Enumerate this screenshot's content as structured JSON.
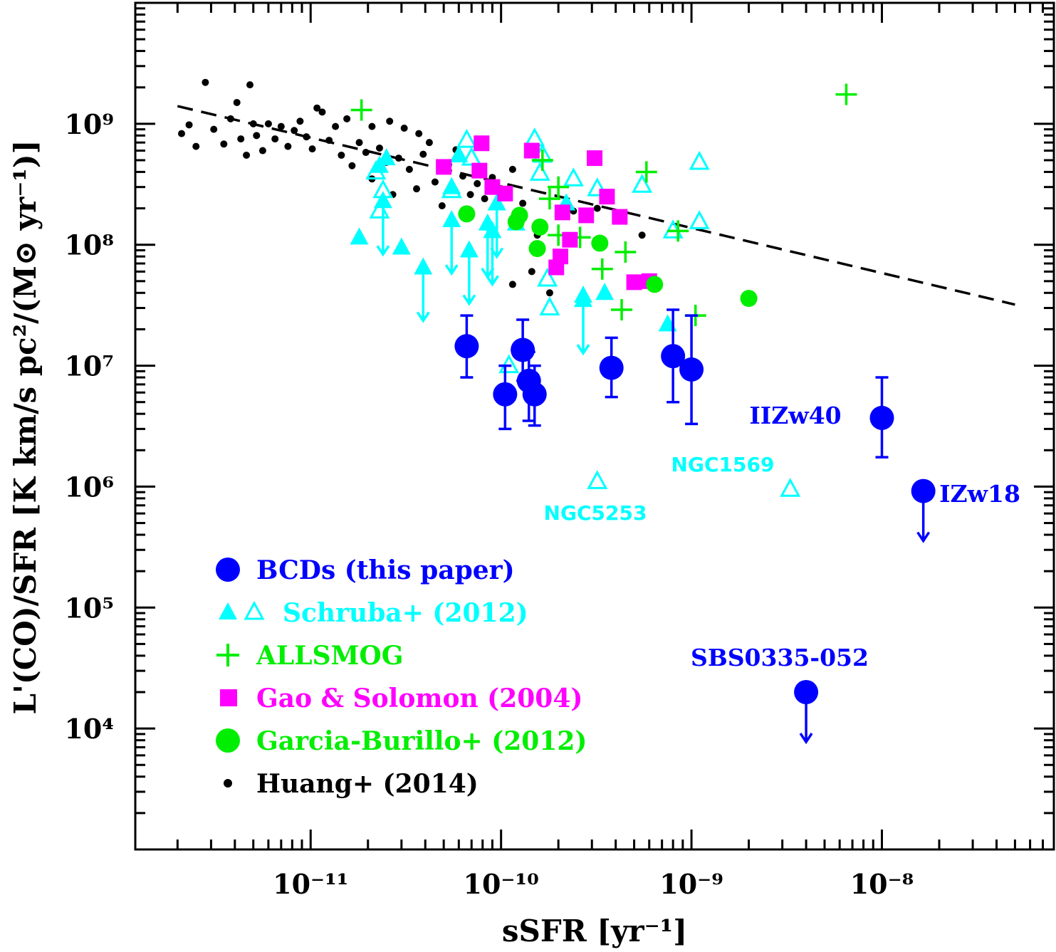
{
  "chart_data": {
    "type": "scatter",
    "title": "",
    "xlabel": "sSFR [yr⁻¹]",
    "ylabel": "L'(CO)/SFR [K km/s pc²/(M⊙ yr⁻¹)]",
    "xscale": "log",
    "yscale": "log",
    "xlim": [
      1.2e-12,
      8e-08
    ],
    "ylim": [
      1000.0,
      10000000000.0
    ],
    "grid": false,
    "legend_position": "bottom-left",
    "x_tick_labels": [
      "10⁻¹¹",
      "10⁻¹⁰",
      "10⁻⁹",
      "10⁻⁸"
    ],
    "y_tick_labels": [
      "10⁴",
      "10⁵",
      "10⁶",
      "10⁷",
      "10⁸",
      "10⁹"
    ],
    "series": [
      {
        "name": "BCDs (this paper)",
        "marker": "circle-filled-large",
        "color": "#0000ff",
        "points": [
          {
            "x": 6.6e-11,
            "y": 14500000.0,
            "ylo": 8000000.0,
            "yhi": 26000000.0
          },
          {
            "x": 1.3e-10,
            "y": 13500000.0,
            "ylo": 7500000.0,
            "yhi": 24000000.0
          },
          {
            "x": 1.05e-10,
            "y": 5800000.0,
            "ylo": 3000000.0,
            "yhi": 10000000.0
          },
          {
            "x": 1.4e-10,
            "y": 7500000.0,
            "ylo": 3500000.0,
            "yhi": 13000000.0
          },
          {
            "x": 1.5e-10,
            "y": 5800000.0,
            "ylo": 3200000.0,
            "yhi": 10000000.0
          },
          {
            "x": 3.8e-10,
            "y": 9600000.0,
            "ylo": 5500000.0,
            "yhi": 17000000.0
          },
          {
            "x": 8e-10,
            "y": 12000000.0,
            "ylo": 5000000.0,
            "yhi": 29000000.0
          },
          {
            "x": 1e-09,
            "y": 9300000.0,
            "ylo": 3300000.0,
            "yhi": 26000000.0
          },
          {
            "x": 1e-08,
            "y": 3700000.0,
            "ylo": 1750000.0,
            "yhi": 8000000.0
          }
        ],
        "upper_limits": [
          {
            "x": 1.65e-08,
            "y": 920000.0
          },
          {
            "x": 4e-09,
            "y": 20000.0
          }
        ]
      },
      {
        "name": "Schruba+ (2012)",
        "marker": "triangle-filled",
        "color": "#00ffff",
        "points": [
          {
            "x": 1.8e-11,
            "y": 115000000.0
          },
          {
            "x": 3e-11,
            "y": 95000000.0
          },
          {
            "x": 2.3e-11,
            "y": 450000000.0
          },
          {
            "x": 2.5e-11,
            "y": 520000000.0
          },
          {
            "x": 5.5e-11,
            "y": 300000000.0
          },
          {
            "x": 6e-11,
            "y": 550000000.0
          },
          {
            "x": 2.7e-10,
            "y": 38000000.0
          },
          {
            "x": 3.5e-10,
            "y": 40000000.0
          },
          {
            "x": 2.2e-10,
            "y": 220000000.0
          },
          {
            "x": 1.2e-10,
            "y": 150000000.0
          },
          {
            "x": 7.5e-10,
            "y": 22000000.0
          }
        ],
        "upper_limits": [
          {
            "x": 3.9e-11,
            "y": 65000000.0
          },
          {
            "x": 5.5e-11,
            "y": 160000000.0
          },
          {
            "x": 6.8e-11,
            "y": 90000000.0
          },
          {
            "x": 8.5e-11,
            "y": 150000000.0
          },
          {
            "x": 9e-11,
            "y": 130000000.0
          },
          {
            "x": 9.5e-11,
            "y": 220000000.0
          },
          {
            "x": 2.7e-10,
            "y": 35000000.0
          },
          {
            "x": 2.4e-11,
            "y": 230000000.0
          }
        ]
      },
      {
        "name": "Schruba+ (2012)",
        "marker": "triangle-open",
        "color": "#00ffff",
        "points": [
          {
            "x": 2.2e-11,
            "y": 400000000.0
          },
          {
            "x": 2.4e-11,
            "y": 280000000.0
          },
          {
            "x": 2.3e-11,
            "y": 190000000.0
          },
          {
            "x": 6.6e-11,
            "y": 730000000.0
          },
          {
            "x": 7e-11,
            "y": 520000000.0
          },
          {
            "x": 5.5e-11,
            "y": 280000000.0
          },
          {
            "x": 1.5e-10,
            "y": 750000000.0
          },
          {
            "x": 1.65e-10,
            "y": 550000000.0
          },
          {
            "x": 1.6e-10,
            "y": 390000000.0
          },
          {
            "x": 2.4e-10,
            "y": 350000000.0
          },
          {
            "x": 1.75e-10,
            "y": 52000000.0
          },
          {
            "x": 1.8e-10,
            "y": 30000000.0
          },
          {
            "x": 3.2e-10,
            "y": 290000000.0
          },
          {
            "x": 5.5e-10,
            "y": 310000000.0
          },
          {
            "x": 1.1e-09,
            "y": 480000000.0
          },
          {
            "x": 1.1e-09,
            "y": 155000000.0
          },
          {
            "x": 8e-10,
            "y": 130000000.0
          },
          {
            "x": 3.2e-10,
            "y": 1100000.0
          },
          {
            "x": 3.3e-09,
            "y": 950000.0
          },
          {
            "x": 1.1e-10,
            "y": 10000000.0
          }
        ]
      },
      {
        "name": "ALLSMOG",
        "marker": "plus",
        "color": "#00ee00",
        "points": [
          {
            "x": 1.85e-11,
            "y": 1300000000.0
          },
          {
            "x": 6.5e-09,
            "y": 1750000000.0
          },
          {
            "x": 5.8e-10,
            "y": 400000000.0
          },
          {
            "x": 1.65e-10,
            "y": 500000000.0
          },
          {
            "x": 2e-10,
            "y": 300000000.0
          },
          {
            "x": 4.5e-10,
            "y": 87000000.0
          },
          {
            "x": 3.4e-10,
            "y": 63000000.0
          },
          {
            "x": 4.3e-10,
            "y": 29000000.0
          },
          {
            "x": 1.05e-09,
            "y": 26000000.0
          },
          {
            "x": 2e-10,
            "y": 120000000.0
          },
          {
            "x": 2.6e-10,
            "y": 115000000.0
          },
          {
            "x": 8.5e-10,
            "y": 130000000.0
          },
          {
            "x": 1e-09,
            "y": 9000000.0
          },
          {
            "x": 1.8e-10,
            "y": 240000000.0
          }
        ]
      },
      {
        "name": "Gao & Solomon (2004)",
        "marker": "square-filled",
        "color": "#ff00ff",
        "points": [
          {
            "x": 5e-11,
            "y": 440000000.0
          },
          {
            "x": 7.9e-11,
            "y": 690000000.0
          },
          {
            "x": 7.7e-11,
            "y": 410000000.0
          },
          {
            "x": 9e-11,
            "y": 300000000.0
          },
          {
            "x": 1.05e-10,
            "y": 265000000.0
          },
          {
            "x": 1.45e-10,
            "y": 600000000.0
          },
          {
            "x": 3.1e-10,
            "y": 520000000.0
          },
          {
            "x": 3.6e-10,
            "y": 250000000.0
          },
          {
            "x": 4.2e-10,
            "y": 170000000.0
          },
          {
            "x": 2.1e-10,
            "y": 185000000.0
          },
          {
            "x": 2.8e-10,
            "y": 175000000.0
          },
          {
            "x": 2.3e-10,
            "y": 110000000.0
          },
          {
            "x": 2.05e-10,
            "y": 80000000.0
          },
          {
            "x": 1.95e-10,
            "y": 65000000.0
          },
          {
            "x": 5e-10,
            "y": 49000000.0
          },
          {
            "x": 6e-10,
            "y": 50000000.0
          }
        ]
      },
      {
        "name": "Garcia-Burillo+ (2012)",
        "marker": "circle-filled",
        "color": "#00ee00",
        "points": [
          {
            "x": 6.6e-11,
            "y": 180000000.0
          },
          {
            "x": 1.2e-10,
            "y": 155000000.0
          },
          {
            "x": 1.25e-10,
            "y": 175000000.0
          },
          {
            "x": 1.6e-10,
            "y": 140000000.0
          },
          {
            "x": 1.55e-10,
            "y": 93000000.0
          },
          {
            "x": 3.3e-10,
            "y": 103000000.0
          },
          {
            "x": 6.4e-10,
            "y": 47000000.0
          },
          {
            "x": 2e-09,
            "y": 36000000.0
          }
        ]
      },
      {
        "name": "Huang+ (2014)",
        "marker": "dot",
        "color": "#000000",
        "points": [
          {
            "x": 2.1e-12,
            "y": 830000000.0
          },
          {
            "x": 2.3e-12,
            "y": 980000000.0
          },
          {
            "x": 2.5e-12,
            "y": 650000000.0
          },
          {
            "x": 2.8e-12,
            "y": 2200000000.0
          },
          {
            "x": 3.1e-12,
            "y": 900000000.0
          },
          {
            "x": 3.5e-12,
            "y": 680000000.0
          },
          {
            "x": 3.8e-12,
            "y": 1100000000.0
          },
          {
            "x": 4.1e-12,
            "y": 1500000000.0
          },
          {
            "x": 4.3e-12,
            "y": 750000000.0
          },
          {
            "x": 4.6e-12,
            "y": 550000000.0
          },
          {
            "x": 4.8e-12,
            "y": 2100000000.0
          },
          {
            "x": 5e-12,
            "y": 1000000000.0
          },
          {
            "x": 5.2e-12,
            "y": 800000000.0
          },
          {
            "x": 5.6e-12,
            "y": 600000000.0
          },
          {
            "x": 6e-12,
            "y": 1000000000.0
          },
          {
            "x": 6.5e-12,
            "y": 750000000.0
          },
          {
            "x": 7e-12,
            "y": 950000000.0
          },
          {
            "x": 7.6e-12,
            "y": 650000000.0
          },
          {
            "x": 8.2e-12,
            "y": 880000000.0
          },
          {
            "x": 8.8e-12,
            "y": 1050000000.0
          },
          {
            "x": 9.5e-12,
            "y": 780000000.0
          },
          {
            "x": 1.02e-11,
            "y": 620000000.0
          },
          {
            "x": 1.08e-11,
            "y": 1350000000.0
          },
          {
            "x": 1.15e-11,
            "y": 1250000000.0
          },
          {
            "x": 1.25e-11,
            "y": 730000000.0
          },
          {
            "x": 1.35e-11,
            "y": 950000000.0
          },
          {
            "x": 1.45e-11,
            "y": 550000000.0
          },
          {
            "x": 1.55e-11,
            "y": 1100000000.0
          },
          {
            "x": 1.65e-11,
            "y": 450000000.0
          },
          {
            "x": 1.8e-11,
            "y": 700000000.0
          },
          {
            "x": 1.95e-11,
            "y": 580000000.0
          },
          {
            "x": 2.1e-11,
            "y": 350000000.0
          },
          {
            "x": 2.3e-11,
            "y": 630000000.0
          },
          {
            "x": 2.5e-11,
            "y": 480000000.0
          },
          {
            "x": 2.7e-11,
            "y": 260000000.0
          },
          {
            "x": 2.9e-11,
            "y": 520000000.0
          },
          {
            "x": 3.1e-11,
            "y": 920000000.0
          },
          {
            "x": 3.3e-11,
            "y": 420000000.0
          },
          {
            "x": 3.6e-11,
            "y": 290000000.0
          },
          {
            "x": 3.9e-11,
            "y": 560000000.0
          },
          {
            "x": 4.2e-11,
            "y": 700000000.0
          },
          {
            "x": 4.5e-11,
            "y": 330000000.0
          },
          {
            "x": 4.9e-11,
            "y": 210000000.0
          },
          {
            "x": 5.3e-11,
            "y": 460000000.0
          },
          {
            "x": 5.8e-11,
            "y": 610000000.0
          },
          {
            "x": 6.3e-11,
            "y": 370000000.0
          },
          {
            "x": 6.9e-11,
            "y": 260000000.0
          },
          {
            "x": 7.5e-11,
            "y": 320000000.0
          },
          {
            "x": 8.2e-11,
            "y": 240000000.0
          },
          {
            "x": 9e-11,
            "y": 360000000.0
          },
          {
            "x": 1e-10,
            "y": 290000000.0
          },
          {
            "x": 1.15e-10,
            "y": 420000000.0
          },
          {
            "x": 1.3e-10,
            "y": 220000000.0
          },
          {
            "x": 1.45e-10,
            "y": 60000000.0
          },
          {
            "x": 1.55e-10,
            "y": 120000000.0
          },
          {
            "x": 1.8e-10,
            "y": 40000000.0
          },
          {
            "x": 2.4e-10,
            "y": 190000000.0
          },
          {
            "x": 3.2e-10,
            "y": 200000000.0
          },
          {
            "x": 5.5e-10,
            "y": 120000000.0
          },
          {
            "x": 1.15e-10,
            "y": 47000000.0
          },
          {
            "x": 2.1e-11,
            "y": 950000000.0
          },
          {
            "x": 3.7e-11,
            "y": 830000000.0
          },
          {
            "x": 2.6e-11,
            "y": 1050000000.0
          }
        ]
      }
    ],
    "fit_line": {
      "style": "dashed",
      "color": "#000000",
      "points": [
        {
          "x": 2e-12,
          "y": 1400000000.0
        },
        {
          "x": 5e-08,
          "y": 32000000.0
        }
      ]
    },
    "annotations": [
      {
        "text": "IIZw40",
        "color": "#0000ff"
      },
      {
        "text": "IZw18",
        "color": "#0000ff"
      },
      {
        "text": "SBS0335-052",
        "color": "#0000ff"
      },
      {
        "text": "NGC1569",
        "color": "#00ffff"
      },
      {
        "text": "NGC5253",
        "color": "#00ffff"
      }
    ]
  },
  "legend": [
    {
      "label": "BCDs (this paper)",
      "color": "#0000ff",
      "marker": "circle-filled-large"
    },
    {
      "label": "Schruba+ (2012)",
      "color": "#00ffff",
      "marker": "triangle-filled-open"
    },
    {
      "label": "ALLSMOG",
      "color": "#00ee00",
      "marker": "plus"
    },
    {
      "label": "Gao & Solomon (2004)",
      "color": "#ff00ff",
      "marker": "square-filled"
    },
    {
      "label": "Garcia-Burillo+ (2012)",
      "color": "#00ee00",
      "marker": "circle-filled"
    },
    {
      "label": "Huang+ (2014)",
      "color": "#000000",
      "marker": "dot"
    }
  ]
}
